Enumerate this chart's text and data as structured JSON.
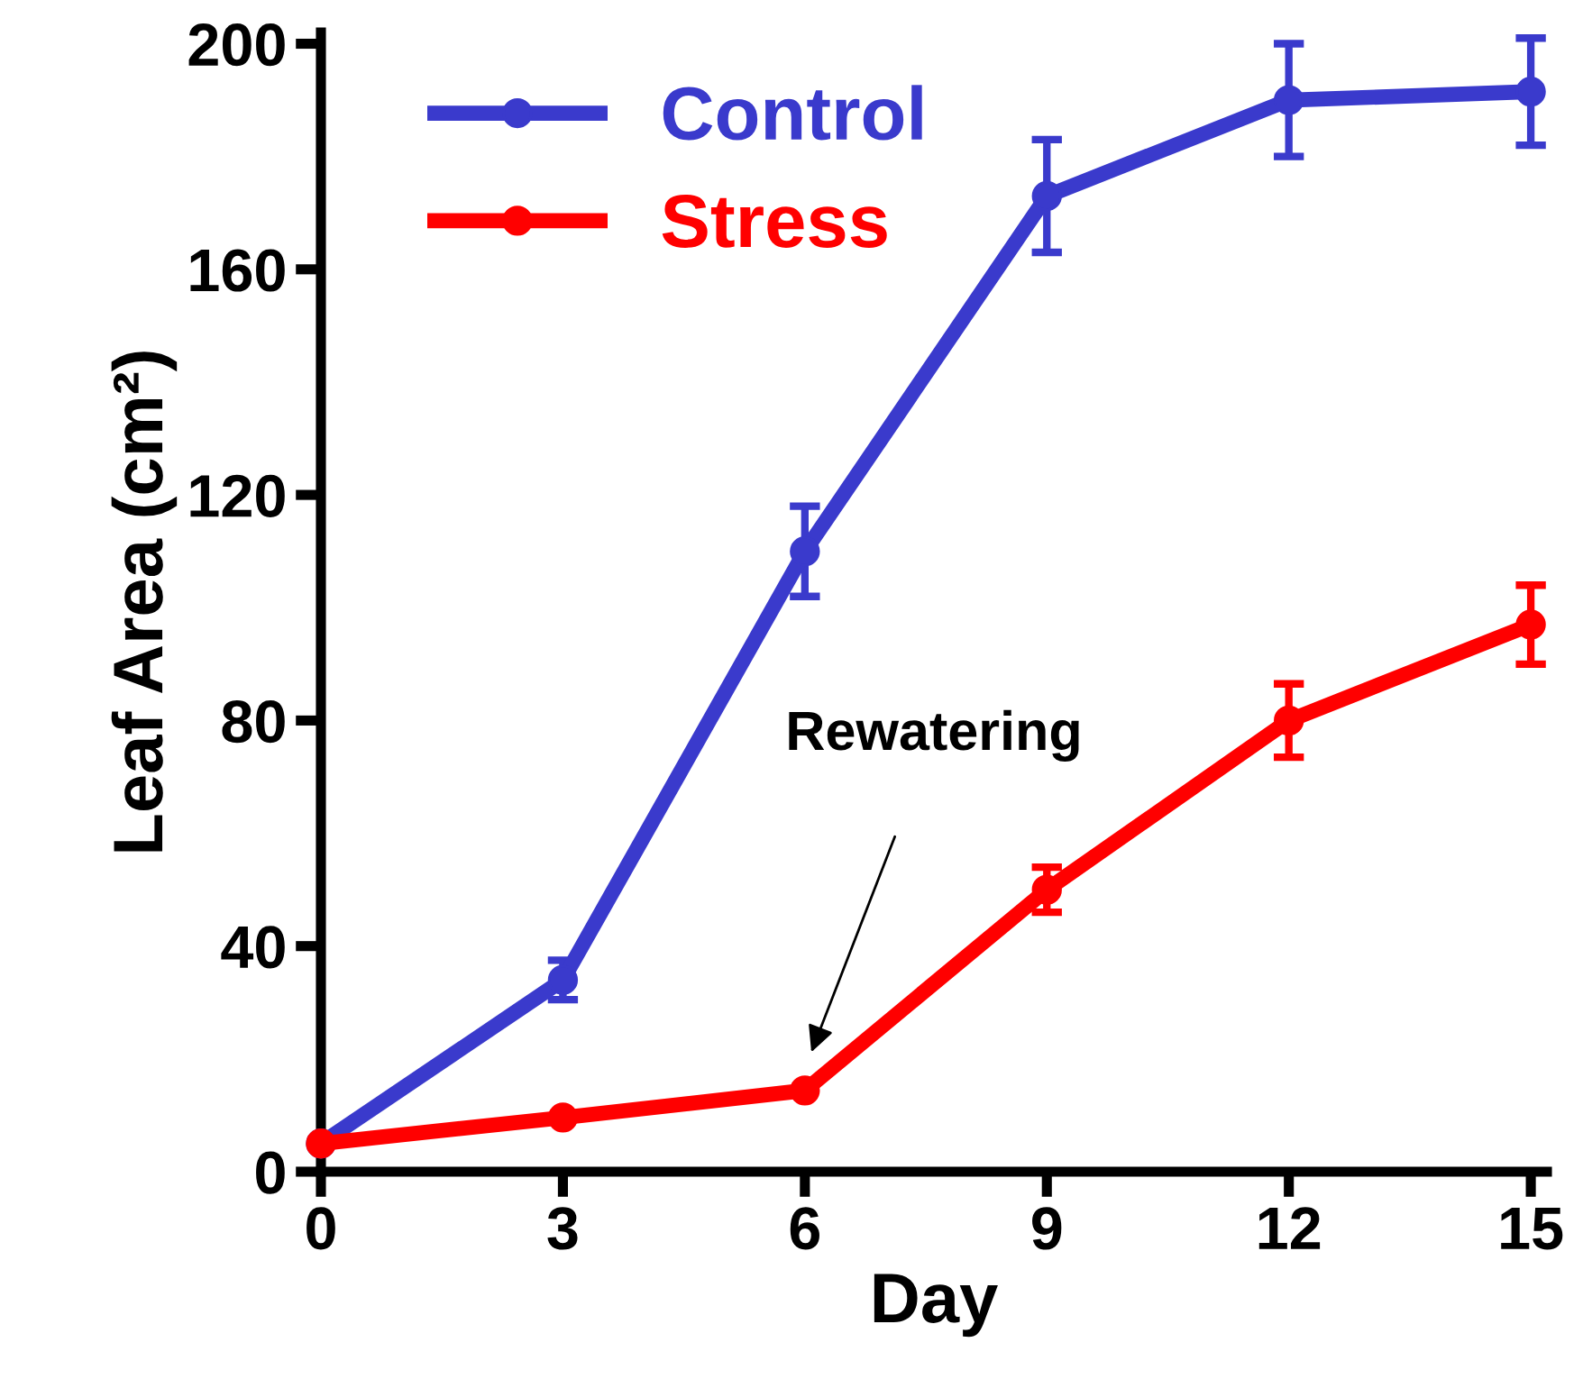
{
  "chart_data": {
    "type": "line",
    "xlabel": "Day",
    "ylabel": "Leaf Area (cm²)",
    "x": [
      0,
      3,
      6,
      9,
      12,
      15
    ],
    "series": [
      {
        "name": "Control",
        "color": "#3a3acc",
        "values": [
          5,
          34,
          110,
          173,
          190,
          191.5
        ],
        "errors": [
          null,
          3.5,
          8,
          10,
          10,
          9.5
        ]
      },
      {
        "name": "Stress",
        "color": "#ff0000",
        "values": [
          5,
          9.6,
          14.4,
          50,
          80,
          97
        ],
        "errors": [
          null,
          null,
          null,
          4,
          6.5,
          7
        ]
      }
    ],
    "xlim": [
      0,
      15.2
    ],
    "xticks": [
      0,
      3,
      6,
      9,
      12,
      15
    ],
    "ylim": [
      0,
      202
    ],
    "yticks": [
      0,
      40,
      80,
      120,
      160,
      200
    ],
    "annotations": [
      "Rewatering"
    ],
    "marker": "circle",
    "line_style": "solid",
    "legend": "top left",
    "grid": false
  }
}
